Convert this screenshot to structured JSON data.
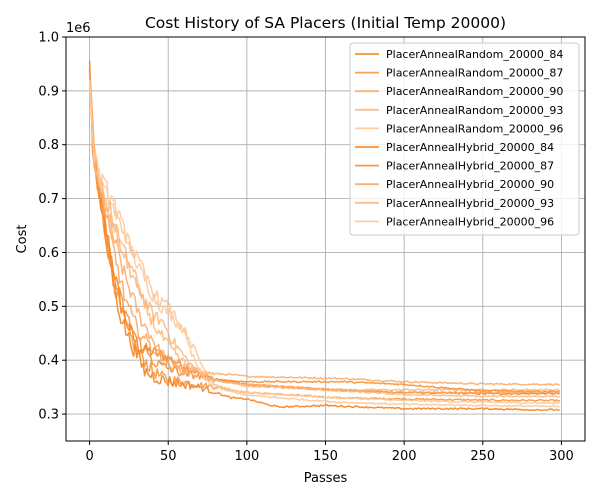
{
  "chart_data": {
    "type": "line",
    "title": "Cost History of SA Placers (Initial Temp 20000)",
    "xlabel": "Passes",
    "ylabel": "Cost",
    "y_scale_label": "1e6",
    "xlim": [
      -15,
      315
    ],
    "ylim": [
      0.25,
      1.0
    ],
    "x_ticks": [
      0,
      50,
      100,
      150,
      200,
      250,
      300
    ],
    "x_tick_labels": [
      "0",
      "50",
      "100",
      "150",
      "200",
      "250",
      "300"
    ],
    "y_ticks": [
      0.3,
      0.4,
      0.5,
      0.6,
      0.7,
      0.8,
      0.9,
      1.0
    ],
    "y_tick_labels": [
      "0.3",
      "0.4",
      "0.5",
      "0.6",
      "0.7",
      "0.8",
      "0.9",
      "1.0"
    ],
    "grid": true,
    "legend_position": "top-right",
    "series": [
      {
        "name": "PlacerAnnealRandom_20000_84",
        "color": "#f7892a",
        "opacity": 0.95,
        "points": [
          [
            0,
            0.95
          ],
          [
            2,
            0.8
          ],
          [
            5,
            0.73
          ],
          [
            8,
            0.68
          ],
          [
            12,
            0.62
          ],
          [
            16,
            0.56
          ],
          [
            20,
            0.5
          ],
          [
            25,
            0.46
          ],
          [
            30,
            0.43
          ],
          [
            35,
            0.42
          ],
          [
            40,
            0.415
          ],
          [
            45,
            0.41
          ],
          [
            50,
            0.405
          ],
          [
            60,
            0.39
          ],
          [
            70,
            0.375
          ],
          [
            80,
            0.365
          ],
          [
            90,
            0.36
          ],
          [
            100,
            0.355
          ],
          [
            120,
            0.35
          ],
          [
            150,
            0.345
          ],
          [
            200,
            0.34
          ],
          [
            250,
            0.338
          ],
          [
            299,
            0.338
          ]
        ]
      },
      {
        "name": "PlacerAnnealRandom_20000_87",
        "color": "#f7892a",
        "opacity": 0.8,
        "points": [
          [
            0,
            0.94
          ],
          [
            2,
            0.78
          ],
          [
            5,
            0.72
          ],
          [
            8,
            0.67
          ],
          [
            12,
            0.6
          ],
          [
            16,
            0.54
          ],
          [
            20,
            0.49
          ],
          [
            25,
            0.45
          ],
          [
            30,
            0.42
          ],
          [
            35,
            0.4
          ],
          [
            40,
            0.38
          ],
          [
            45,
            0.37
          ],
          [
            50,
            0.365
          ],
          [
            60,
            0.36
          ],
          [
            70,
            0.355
          ],
          [
            80,
            0.35
          ],
          [
            90,
            0.345
          ],
          [
            100,
            0.34
          ],
          [
            130,
            0.335
          ],
          [
            160,
            0.33
          ],
          [
            200,
            0.328
          ],
          [
            250,
            0.326
          ],
          [
            299,
            0.325
          ]
        ]
      },
      {
        "name": "PlacerAnnealRandom_20000_90",
        "color": "#fba25a",
        "opacity": 0.8,
        "points": [
          [
            0,
            0.93
          ],
          [
            3,
            0.78
          ],
          [
            6,
            0.72
          ],
          [
            10,
            0.68
          ],
          [
            14,
            0.64
          ],
          [
            18,
            0.6
          ],
          [
            22,
            0.56
          ],
          [
            27,
            0.52
          ],
          [
            32,
            0.48
          ],
          [
            38,
            0.45
          ],
          [
            44,
            0.42
          ],
          [
            50,
            0.4
          ],
          [
            60,
            0.385
          ],
          [
            70,
            0.378
          ],
          [
            80,
            0.375
          ],
          [
            90,
            0.373
          ],
          [
            100,
            0.37
          ],
          [
            130,
            0.368
          ],
          [
            160,
            0.366
          ],
          [
            200,
            0.36
          ],
          [
            250,
            0.356
          ],
          [
            299,
            0.355
          ]
        ]
      },
      {
        "name": "PlacerAnnealRandom_20000_93",
        "color": "#fcb67a",
        "opacity": 0.85,
        "points": [
          [
            0,
            0.92
          ],
          [
            3,
            0.77
          ],
          [
            6,
            0.72
          ],
          [
            10,
            0.69
          ],
          [
            14,
            0.66
          ],
          [
            18,
            0.63
          ],
          [
            22,
            0.6
          ],
          [
            27,
            0.57
          ],
          [
            32,
            0.53
          ],
          [
            37,
            0.5
          ],
          [
            42,
            0.48
          ],
          [
            47,
            0.47
          ],
          [
            52,
            0.44
          ],
          [
            57,
            0.42
          ],
          [
            62,
            0.4
          ],
          [
            68,
            0.38
          ],
          [
            75,
            0.37
          ],
          [
            85,
            0.36
          ],
          [
            100,
            0.355
          ],
          [
            130,
            0.35
          ],
          [
            160,
            0.345
          ],
          [
            200,
            0.345
          ],
          [
            250,
            0.345
          ],
          [
            299,
            0.345
          ]
        ]
      },
      {
        "name": "PlacerAnnealRandom_20000_96",
        "color": "#fdc999",
        "opacity": 0.9,
        "points": [
          [
            0,
            0.91
          ],
          [
            3,
            0.78
          ],
          [
            6,
            0.74
          ],
          [
            10,
            0.71
          ],
          [
            14,
            0.69
          ],
          [
            18,
            0.66
          ],
          [
            22,
            0.64
          ],
          [
            26,
            0.61
          ],
          [
            30,
            0.58
          ],
          [
            35,
            0.55
          ],
          [
            40,
            0.52
          ],
          [
            45,
            0.5
          ],
          [
            50,
            0.49
          ],
          [
            55,
            0.47
          ],
          [
            60,
            0.46
          ],
          [
            65,
            0.43
          ],
          [
            70,
            0.4
          ],
          [
            75,
            0.37
          ],
          [
            80,
            0.355
          ],
          [
            90,
            0.345
          ],
          [
            100,
            0.34
          ],
          [
            130,
            0.335
          ],
          [
            160,
            0.33
          ],
          [
            200,
            0.325
          ],
          [
            250,
            0.322
          ],
          [
            299,
            0.32
          ]
        ]
      },
      {
        "name": "PlacerAnnealHybrid_20000_84",
        "color": "#f7892a",
        "opacity": 0.95,
        "points": [
          [
            0,
            0.96
          ],
          [
            2,
            0.8
          ],
          [
            5,
            0.73
          ],
          [
            8,
            0.67
          ],
          [
            12,
            0.6
          ],
          [
            16,
            0.53
          ],
          [
            20,
            0.48
          ],
          [
            25,
            0.44
          ],
          [
            30,
            0.41
          ],
          [
            35,
            0.38
          ],
          [
            40,
            0.37
          ],
          [
            45,
            0.365
          ],
          [
            50,
            0.36
          ],
          [
            60,
            0.355
          ],
          [
            70,
            0.35
          ],
          [
            80,
            0.34
          ],
          [
            90,
            0.33
          ],
          [
            100,
            0.328
          ],
          [
            110,
            0.32
          ],
          [
            120,
            0.313
          ],
          [
            150,
            0.316
          ],
          [
            200,
            0.31
          ],
          [
            250,
            0.31
          ],
          [
            280,
            0.308
          ],
          [
            299,
            0.308
          ]
        ]
      },
      {
        "name": "PlacerAnnealHybrid_20000_87",
        "color": "#f7892a",
        "opacity": 0.85,
        "points": [
          [
            0,
            0.94
          ],
          [
            2,
            0.79
          ],
          [
            5,
            0.73
          ],
          [
            8,
            0.68
          ],
          [
            12,
            0.61
          ],
          [
            16,
            0.55
          ],
          [
            20,
            0.51
          ],
          [
            25,
            0.47
          ],
          [
            30,
            0.44
          ],
          [
            35,
            0.42
          ],
          [
            40,
            0.4
          ],
          [
            45,
            0.39
          ],
          [
            50,
            0.385
          ],
          [
            60,
            0.375
          ],
          [
            70,
            0.37
          ],
          [
            80,
            0.365
          ],
          [
            90,
            0.362
          ],
          [
            100,
            0.36
          ],
          [
            130,
            0.36
          ],
          [
            160,
            0.36
          ],
          [
            200,
            0.355
          ],
          [
            250,
            0.343
          ],
          [
            299,
            0.342
          ]
        ]
      },
      {
        "name": "PlacerAnnealHybrid_20000_90",
        "color": "#fba25a",
        "opacity": 0.85,
        "points": [
          [
            0,
            0.93
          ],
          [
            3,
            0.78
          ],
          [
            6,
            0.72
          ],
          [
            10,
            0.67
          ],
          [
            14,
            0.62
          ],
          [
            18,
            0.57
          ],
          [
            22,
            0.52
          ],
          [
            27,
            0.48
          ],
          [
            32,
            0.45
          ],
          [
            38,
            0.43
          ],
          [
            44,
            0.41
          ],
          [
            50,
            0.39
          ],
          [
            60,
            0.38
          ],
          [
            70,
            0.37
          ],
          [
            80,
            0.362
          ],
          [
            90,
            0.358
          ],
          [
            100,
            0.355
          ],
          [
            130,
            0.35
          ],
          [
            160,
            0.345
          ],
          [
            200,
            0.34
          ],
          [
            250,
            0.34
          ],
          [
            299,
            0.34
          ]
        ]
      },
      {
        "name": "PlacerAnnealHybrid_20000_93",
        "color": "#fcb67a",
        "opacity": 0.85,
        "points": [
          [
            0,
            0.92
          ],
          [
            3,
            0.77
          ],
          [
            6,
            0.73
          ],
          [
            10,
            0.7
          ],
          [
            14,
            0.67
          ],
          [
            18,
            0.63
          ],
          [
            22,
            0.59
          ],
          [
            27,
            0.56
          ],
          [
            32,
            0.52
          ],
          [
            37,
            0.49
          ],
          [
            42,
            0.46
          ],
          [
            47,
            0.44
          ],
          [
            52,
            0.42
          ],
          [
            58,
            0.4
          ],
          [
            65,
            0.385
          ],
          [
            75,
            0.37
          ],
          [
            85,
            0.36
          ],
          [
            100,
            0.352
          ],
          [
            130,
            0.348
          ],
          [
            160,
            0.343
          ],
          [
            200,
            0.336
          ],
          [
            250,
            0.333
          ],
          [
            299,
            0.333
          ]
        ]
      },
      {
        "name": "PlacerAnnealHybrid_20000_96",
        "color": "#fdc999",
        "opacity": 0.9,
        "points": [
          [
            0,
            0.91
          ],
          [
            3,
            0.78
          ],
          [
            6,
            0.74
          ],
          [
            10,
            0.72
          ],
          [
            14,
            0.7
          ],
          [
            18,
            0.67
          ],
          [
            22,
            0.64
          ],
          [
            26,
            0.61
          ],
          [
            30,
            0.59
          ],
          [
            35,
            0.56
          ],
          [
            40,
            0.53
          ],
          [
            45,
            0.51
          ],
          [
            50,
            0.5
          ],
          [
            55,
            0.48
          ],
          [
            60,
            0.45
          ],
          [
            65,
            0.41
          ],
          [
            70,
            0.38
          ],
          [
            75,
            0.36
          ],
          [
            85,
            0.345
          ],
          [
            100,
            0.335
          ],
          [
            130,
            0.328
          ],
          [
            160,
            0.322
          ],
          [
            200,
            0.318
          ],
          [
            250,
            0.316
          ],
          [
            299,
            0.314
          ]
        ]
      }
    ]
  }
}
